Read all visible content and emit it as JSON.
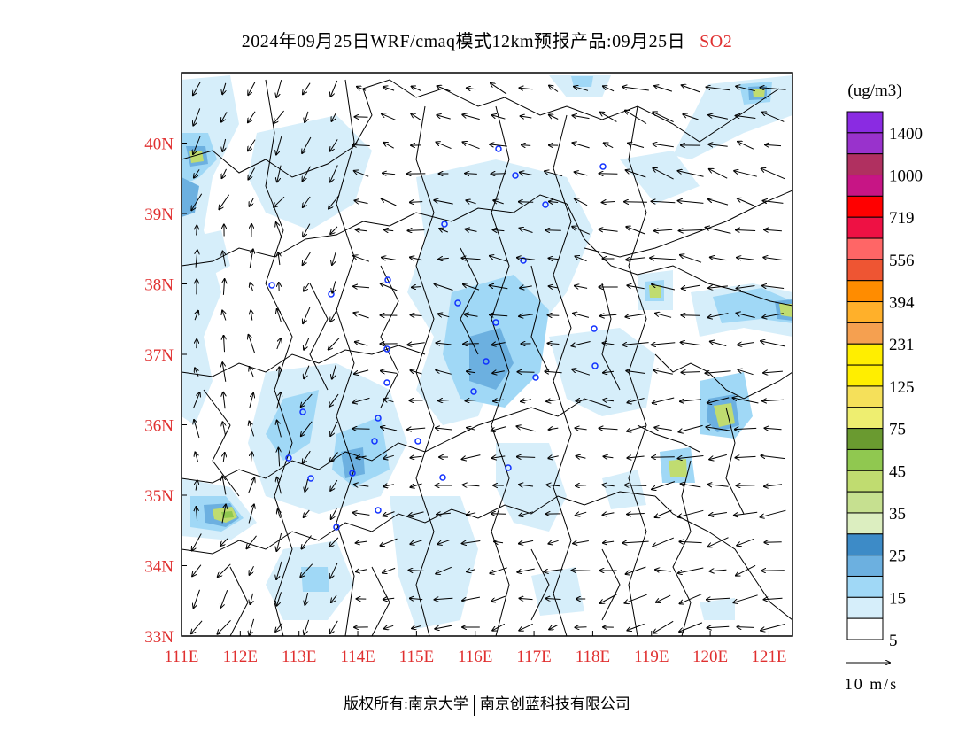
{
  "title": {
    "main": "2024年09月25日WRF/cmaq模式12km预报产品:09月25日",
    "species": "SO2"
  },
  "map": {
    "lat_labels": [
      "40N",
      "39N",
      "38N",
      "37N",
      "36N",
      "35N",
      "34N",
      "33N"
    ],
    "lon_labels": [
      "111E",
      "112E",
      "113E",
      "114E",
      "115E",
      "116E",
      "117E",
      "118E",
      "119E",
      "120E",
      "121E"
    ],
    "lat_range": [
      33,
      41
    ],
    "lon_range": [
      111,
      121.4
    ]
  },
  "legend": {
    "unit": "(ug/m3)",
    "labels": [
      "1400",
      "1000",
      "719",
      "556",
      "394",
      "231",
      "125",
      "75",
      "45",
      "35",
      "25",
      "15",
      "5"
    ],
    "colors": [
      "#8a2be2",
      "#9932cc",
      "#b03060",
      "#c71585",
      "#ff0000",
      "#ee1144",
      "#ff6666",
      "#ee5533",
      "#ff8c00",
      "#ffb02a",
      "#f5a050",
      "#ffee00",
      "#ffee00",
      "#f5e05a",
      "#eeee70",
      "#6a9a30",
      "#90c850",
      "#c0dc70",
      "#c6e090",
      "#dceec0",
      "#3d8bc7",
      "#6cb0e0",
      "#a0d8f6",
      "#d6eefa",
      "#ffffff"
    ],
    "wind_scale": "10 m/s"
  },
  "copyright": {
    "left": "版权所有:南京大学",
    "right": "南京创蓝科技有限公司"
  }
}
